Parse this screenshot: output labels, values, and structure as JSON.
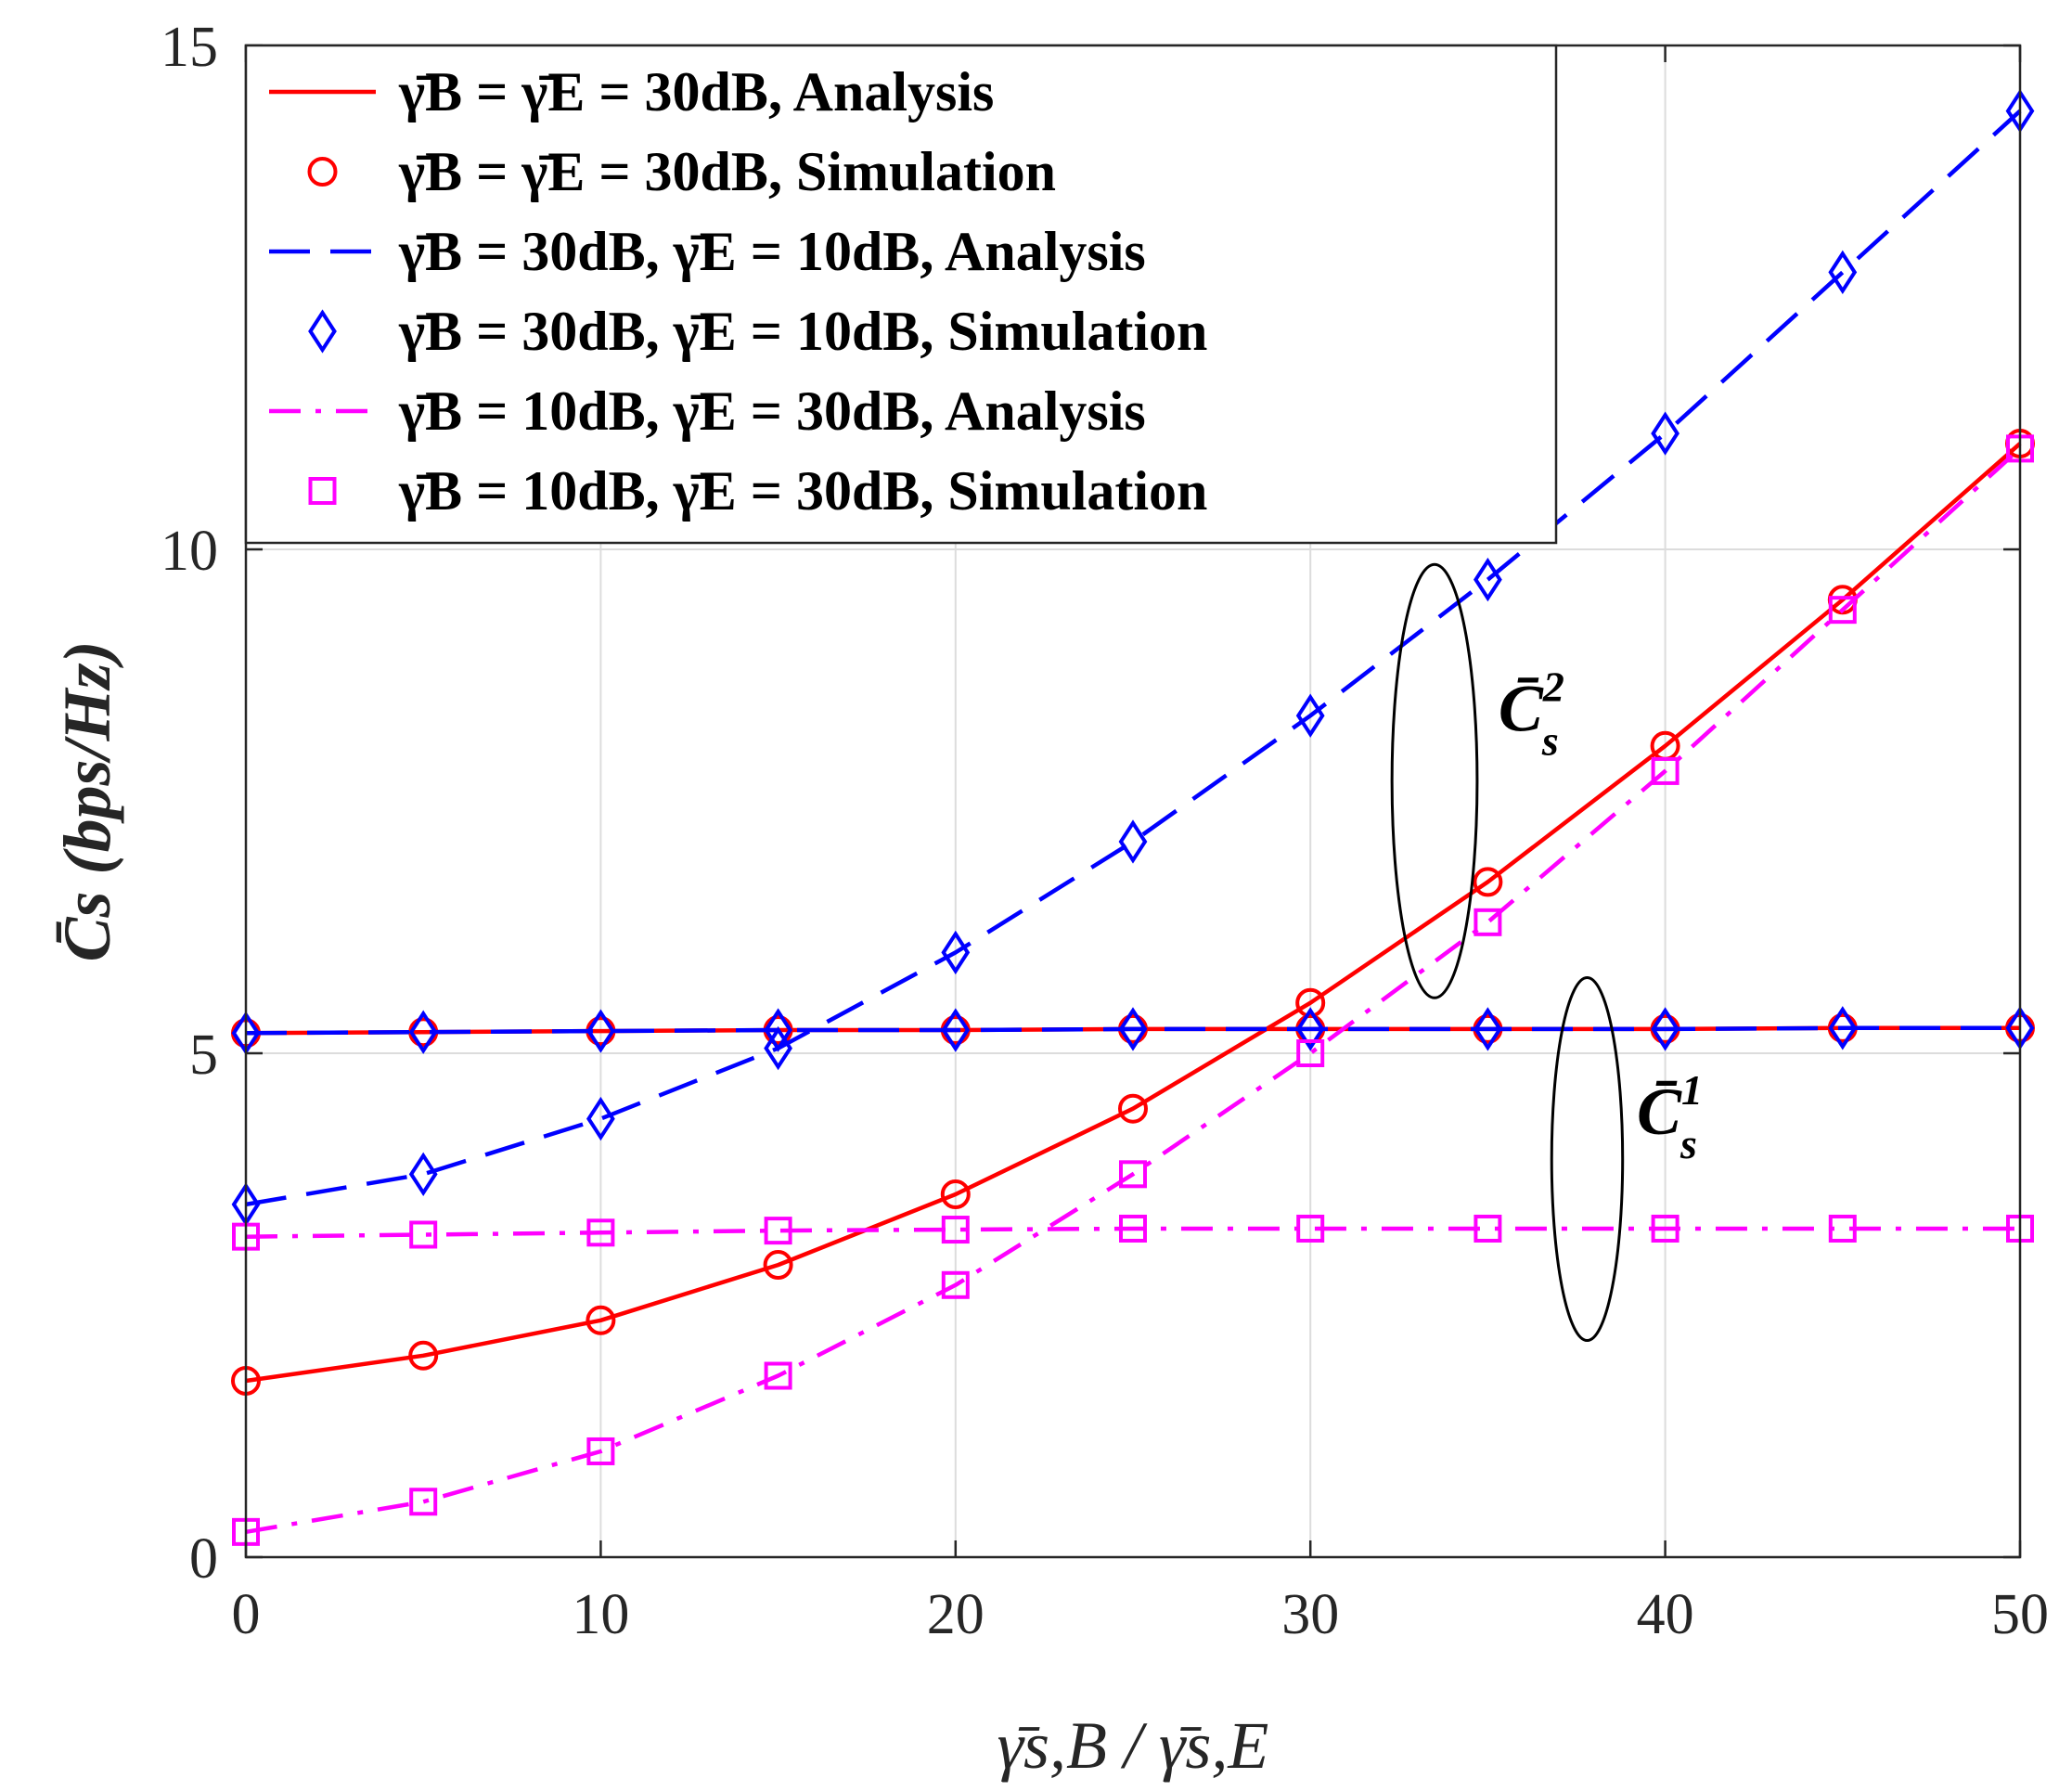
{
  "chart_data": {
    "type": "line",
    "title": "",
    "xlabel": "γ̄s,B / γ̄s,E",
    "ylabel": "C̄s (bps/Hz)",
    "xlim": [
      0,
      50
    ],
    "ylim": [
      0,
      15
    ],
    "xticks": [
      0,
      10,
      20,
      30,
      40,
      50
    ],
    "yticks": [
      0,
      5,
      10,
      15
    ],
    "grid": true,
    "legend_position": "top-left",
    "x": [
      0,
      5,
      10,
      15,
      20,
      25,
      30,
      35,
      40,
      45,
      50
    ],
    "series": [
      {
        "name": "γ̄B = γ̄E = 30dB, Analysis",
        "color": "#ff0000",
        "style": "solid",
        "marker": "none",
        "curves": [
          [
            1.75,
            2.0,
            2.35,
            2.9,
            3.6,
            4.45,
            5.5,
            6.7,
            8.05,
            9.5,
            11.05
          ],
          [
            5.2,
            5.21,
            5.22,
            5.23,
            5.23,
            5.24,
            5.24,
            5.24,
            5.24,
            5.25,
            5.25
          ]
        ]
      },
      {
        "name": "γ̄B = γ̄E = 30dB, Simulation",
        "color": "#ff0000",
        "style": "none",
        "marker": "circle",
        "curves": [
          [
            1.75,
            2.0,
            2.35,
            2.9,
            3.6,
            4.45,
            5.5,
            6.7,
            8.05,
            9.5,
            11.05
          ],
          [
            5.2,
            5.21,
            5.22,
            5.23,
            5.23,
            5.24,
            5.24,
            5.24,
            5.24,
            5.25,
            5.25
          ]
        ]
      },
      {
        "name": "γ̄B = 30dB, γ̄E = 10dB, Analysis",
        "color": "#0000ff",
        "style": "dashed",
        "marker": "none",
        "curves": [
          [
            3.5,
            3.8,
            4.35,
            5.05,
            6.0,
            7.1,
            8.35,
            9.7,
            11.15,
            12.75,
            14.35
          ],
          [
            5.2,
            5.21,
            5.22,
            5.23,
            5.23,
            5.24,
            5.24,
            5.24,
            5.24,
            5.25,
            5.25
          ]
        ]
      },
      {
        "name": "γ̄B = 30dB, γ̄E = 10dB, Simulation",
        "color": "#0000ff",
        "style": "none",
        "marker": "diamond",
        "curves": [
          [
            3.5,
            3.8,
            4.35,
            5.05,
            6.0,
            7.1,
            8.35,
            9.7,
            11.15,
            12.75,
            14.35
          ],
          [
            5.2,
            5.21,
            5.22,
            5.23,
            5.23,
            5.24,
            5.24,
            5.24,
            5.24,
            5.25,
            5.25
          ]
        ]
      },
      {
        "name": "γ̄B = 10dB, γ̄E = 30dB, Analysis",
        "color": "#ff00ff",
        "style": "dashdot",
        "marker": "none",
        "curves": [
          [
            0.25,
            0.55,
            1.05,
            1.8,
            2.7,
            3.8,
            5.0,
            6.3,
            7.8,
            9.4,
            11.0
          ],
          [
            3.18,
            3.2,
            3.22,
            3.24,
            3.25,
            3.26,
            3.26,
            3.26,
            3.26,
            3.26,
            3.26
          ]
        ]
      },
      {
        "name": "γ̄B = 10dB, γ̄E = 30dB, Simulation",
        "color": "#ff00ff",
        "style": "none",
        "marker": "square",
        "curves": [
          [
            0.25,
            0.55,
            1.05,
            1.8,
            2.7,
            3.8,
            5.0,
            6.3,
            7.8,
            9.4,
            11.0
          ],
          [
            3.18,
            3.2,
            3.22,
            3.24,
            3.25,
            3.26,
            3.26,
            3.26,
            3.26,
            3.26,
            3.26
          ]
        ]
      }
    ],
    "annotations": [
      {
        "label": "C̄s2",
        "base": "C̄",
        "sub": "s",
        "sup": "2",
        "ellipse_center": [
          33.5,
          7.7
        ],
        "ellipse_radii": [
          1.2,
          2.15
        ],
        "text_at": [
          35.3,
          8.2
        ]
      },
      {
        "label": "C̄s1",
        "base": "C̄",
        "sub": "s",
        "sup": "1",
        "ellipse_center": [
          37.8,
          3.95
        ],
        "ellipse_radii": [
          1.0,
          1.8
        ],
        "text_at": [
          39.2,
          4.2
        ]
      }
    ]
  }
}
